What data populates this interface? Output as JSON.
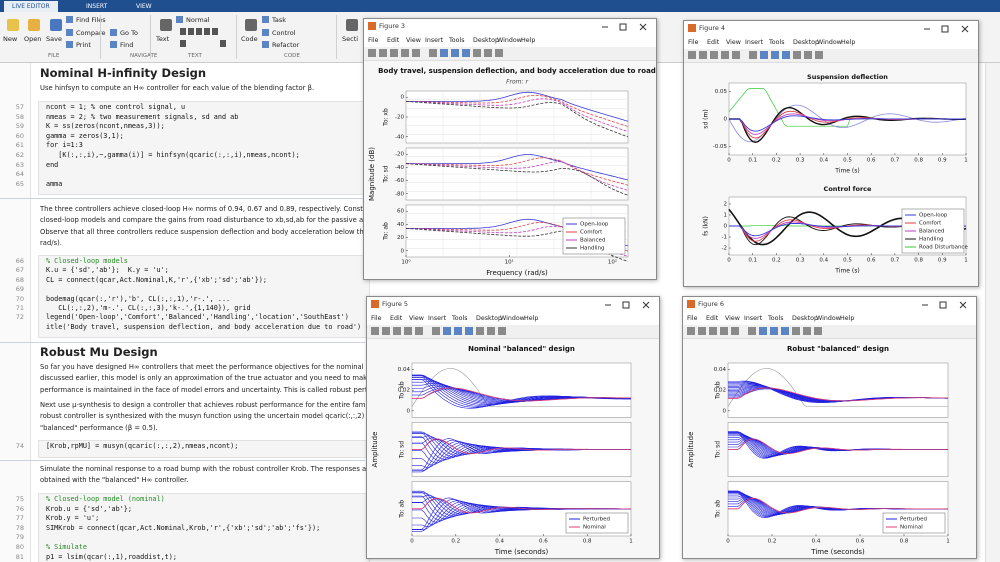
{
  "tabs": [
    "LIVE EDITOR",
    "INSERT",
    "VIEW"
  ],
  "toolstrip": {
    "buttons": [
      "New",
      "Open",
      "Save",
      "Find Files",
      "Compare",
      "Print",
      "Go To",
      "Find",
      "Text",
      "Normal",
      "Code",
      "Task",
      "Control",
      "Refactor",
      "Secti"
    ],
    "groups": [
      "FILE",
      "NAVIGATE",
      "TEXT",
      "CODE"
    ]
  },
  "editor": {
    "blocks": [
      {
        "kind": "heading",
        "text": "Nominal H-infinity Design"
      },
      {
        "kind": "text",
        "lines": [
          "Use hinfsyn to compute an H∞ controller for each value of the blending factor β."
        ]
      },
      {
        "kind": "code",
        "rows": [
          {
            "line": 57,
            "code": "ncont = 1; % one control signal, u"
          },
          {
            "line": 58,
            "code": "nmeas = 2; % two measurement signals, sd and ab"
          },
          {
            "line": 59,
            "code": "K = ss(zeros(ncont,nmeas,3));"
          },
          {
            "line": 60,
            "code": "gamma = zeros(3,1);"
          },
          {
            "line": 61,
            "code": "for i=1:3"
          },
          {
            "line": 62,
            "code": "   [K(:,:,i),~,gamma(i)] = hinfsyn(qcaric(:,:,i),nmeas,ncont);"
          },
          {
            "line": 63,
            "code": "end"
          },
          {
            "line": 64
          },
          {
            "line": 65,
            "code": "amma"
          }
        ]
      },
      {
        "kind": "text",
        "lines": [
          "The three controllers achieve closed-loop H∞ norms of 0.94, 0.67 and 0.89, respectively. Construct t",
          "closed-loop models and compare the gains from road disturbance to xb,sd,ab for the passive and ac",
          "Observe that all three controllers reduce suspension deflection and body acceleration below the rattl",
          "rad/s)."
        ]
      },
      {
        "kind": "code",
        "rows": [
          {
            "line": 66,
            "code": "% Closed-loop models"
          },
          {
            "line": 67,
            "code": "K.u = {'sd','ab'};  K.y = 'u';"
          },
          {
            "line": 68,
            "code": "CL = connect(qcar,Act.Nominal,K,'r',{'xb';'sd';'ab'});"
          },
          {
            "line": 69
          },
          {
            "line": 70,
            "code": "bodemag(qcar(:,'r'),'b', CL(:,:,1),'r-.', ..."
          },
          {
            "line": 71,
            "code": "   CL(:,:,2),'m-.', CL(:,:,3),'k-.',{1,140}), grid"
          },
          {
            "line": 72,
            "code": "legend('Open-loop','Comfort','Balanced','Handling','location','SouthEast')"
          },
          {
            "code": "itle('Body travel, suspension deflection, and body acceleration due to road')"
          }
        ]
      },
      {
        "kind": "heading",
        "text": "Robust Mu Design"
      },
      {
        "kind": "text",
        "lines": [
          "So far you have designed H∞ controllers that meet the performance objectives for the nominal actuat",
          "discussed earlier, this model is only an approximation of the true actuator and you need to make sure",
          "performance is maintained in the face of model errors and uncertainty. This is called robust performan"
        ]
      },
      {
        "kind": "text",
        "lines": [
          "Next use µ-synthesis to design a controller that achieves robust performance for the entire family of a",
          "robust controller is synthesized with the musyn function using the uncertain model qcaric(:,:,2) co",
          "\"balanced\" performance (β = 0.5)."
        ]
      },
      {
        "kind": "code",
        "rows": [
          {
            "line": 74,
            "code": "[Krob,rpMU] = musyn(qcaric(:,:,2),nmeas,ncont);"
          }
        ]
      },
      {
        "kind": "text",
        "lines": [
          "Simulate the nominal response to a road bump with the robust controller Krob. The responses are sim",
          "obtained with the \"balanced\" H∞ controller."
        ]
      },
      {
        "kind": "code",
        "rows": [
          {
            "line": 75,
            "code": "% Closed-loop model (nominal)"
          },
          {
            "line": 76,
            "code": "Krob.u = {'sd','ab'};"
          },
          {
            "line": 77,
            "code": "Krob.y = 'u';"
          },
          {
            "line": 78,
            "code": "SIMKrob = connect(qcar,Act.Nominal,Krob,'r',{'xb';'sd';'ab';'fs'});"
          },
          {
            "line": 79
          },
          {
            "line": 80,
            "code": "% Simulate"
          },
          {
            "line": 81,
            "code": "p1 = lsim(qcar(:,1),roaddist,t);"
          }
        ]
      }
    ]
  },
  "figures": [
    {
      "window": "Figure 3",
      "menus": [
        "File",
        "Edit",
        "View",
        "Insert",
        "Tools",
        "Desktop",
        "Window",
        "Help"
      ],
      "title": "Body travel, suspension deflection, and body acceleration due to road",
      "subtitle": "From: r",
      "ylabel": "Magnitude (dB)",
      "xlabel": "Frequency  (rad/s)",
      "xticks": [
        {
          "value": 1,
          "label": "10⁰"
        },
        {
          "value": 10,
          "label": "10¹"
        },
        {
          "value": 100,
          "label": "10²"
        }
      ],
      "panels": [
        {
          "name": "To: xb",
          "yticks": [
            0,
            -20,
            -40
          ]
        },
        {
          "name": "To: sd",
          "yticks": [
            -20,
            -40,
            -60,
            -80
          ]
        },
        {
          "name": "To: ab",
          "yticks": [
            60,
            40,
            20,
            0
          ]
        }
      ],
      "legend": [
        "Open-loop",
        "Comfort",
        "Balanced",
        "Handling"
      ]
    },
    {
      "window": "Figure 4",
      "menus": [
        "File",
        "Edit",
        "View",
        "Insert",
        "Tools",
        "Desktop",
        "Window",
        "Help"
      ],
      "axes": [
        {
          "title": "Suspension deflection",
          "ylabel": "sd (m)",
          "yticks": [
            0.05,
            0,
            -0.05
          ],
          "xticks": [
            0,
            0.1,
            0.2,
            0.3,
            0.4,
            0.5,
            0.6,
            0.7,
            0.8,
            0.9,
            1
          ],
          "xlabel": "Time (s)"
        },
        {
          "title": "Control force",
          "ylabel": "fs (kN)",
          "yticks": [
            2,
            1,
            0,
            -1,
            -2
          ],
          "xticks": [
            0,
            0.1,
            0.2,
            0.3,
            0.4,
            0.5,
            0.6,
            0.7,
            0.8,
            0.9,
            1
          ],
          "xlabel": "Time (s)",
          "legend": [
            "Open-loop",
            "Comfort",
            "Balanced",
            "Handling",
            "Road Disturbance"
          ]
        }
      ]
    },
    {
      "window": "Figure 5",
      "menus": [
        "File",
        "Edit",
        "View",
        "Insert",
        "Tools",
        "Desktop",
        "Window",
        "Help"
      ],
      "title": "Nominal \"balanced\" design",
      "ylabel": "Amplitude",
      "xlabel": "Time (seconds)",
      "xticks": [
        0,
        0.2,
        0.4,
        0.6,
        0.8,
        1
      ],
      "panels": [
        {
          "name": "To: xb",
          "yticks": [
            0.04,
            0.02,
            0
          ]
        },
        {
          "name": "To: sd"
        },
        {
          "name": "To: ab"
        }
      ],
      "legend": [
        "Perturbed",
        "Nominal"
      ]
    },
    {
      "window": "Figure 6",
      "menus": [
        "File",
        "Edit",
        "View",
        "Insert",
        "Tools",
        "Desktop",
        "Window",
        "Help"
      ],
      "title": "Robust \"balanced\" design",
      "ylabel": "Amplitude",
      "xlabel": "Time (seconds)",
      "xticks": [
        0,
        0.2,
        0.4,
        0.6,
        0.8,
        1
      ],
      "panels": [
        {
          "name": "To: xb",
          "yticks": [
            0.04,
            0.02,
            0
          ]
        },
        {
          "name": "To: sd"
        },
        {
          "name": "To: ab"
        }
      ],
      "legend": [
        "Perturbed",
        "Nominal"
      ]
    }
  ]
}
